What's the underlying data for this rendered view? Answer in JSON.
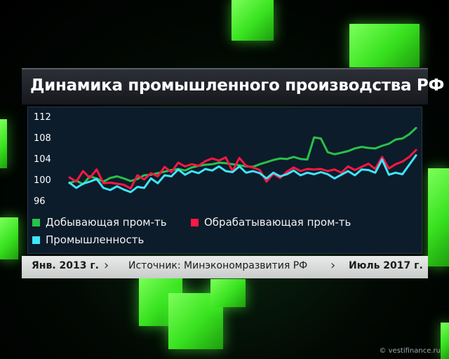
{
  "title": "Динамика промышленного производства РФ",
  "footer": {
    "start": "Янв. 2013 г.",
    "source": "Источник: Минэкономразвития РФ",
    "end": "Июль 2017 г."
  },
  "watermark": "© vestifinance.ru",
  "colors": {
    "mining": "#27c24a",
    "manufacturing": "#ff1744",
    "industry": "#3ee6ff"
  },
  "chart_data": {
    "type": "line",
    "title": "Динамика промышленного производства РФ",
    "xlabel": "",
    "ylabel": "",
    "x_range": [
      "Янв. 2013 г.",
      "Июль 2017 г."
    ],
    "ylim": [
      96,
      112
    ],
    "yticks": [
      96,
      100,
      104,
      108,
      112
    ],
    "grid": false,
    "legend_position": "bottom",
    "series": [
      {
        "name": "Добывающая пром-ть",
        "color": "#27c24a",
        "values": [
          99.3,
          99.8,
          99.1,
          100.6,
          100.2,
          99.6,
          100.3,
          100.6,
          100.2,
          99.7,
          100.1,
          100.8,
          100.9,
          101.2,
          101.5,
          101.8,
          102.0,
          101.7,
          102.3,
          102.6,
          102.8,
          102.9,
          103.2,
          103.1,
          102.9,
          102.7,
          102.5,
          102.4,
          102.9,
          103.3,
          103.7,
          104.0,
          103.9,
          104.3,
          103.9,
          103.8,
          108.0,
          107.8,
          105.2,
          104.8,
          105.1,
          105.4,
          105.9,
          106.2,
          106.0,
          105.9,
          106.4,
          106.8,
          107.6,
          107.8,
          108.6,
          109.8
        ]
      },
      {
        "name": "Обрабатывающая пром-ть",
        "color": "#ff1744",
        "values": [
          100.4,
          99.6,
          101.6,
          100.3,
          101.9,
          99.3,
          99.4,
          99.2,
          99.0,
          98.3,
          100.8,
          100.0,
          101.2,
          100.6,
          102.4,
          101.4,
          103.2,
          102.5,
          102.9,
          102.6,
          103.5,
          104.0,
          103.6,
          104.2,
          101.6,
          104.1,
          102.6,
          102.3,
          101.8,
          99.6,
          101.1,
          100.3,
          101.5,
          102.3,
          101.6,
          102.0,
          101.9,
          102.0,
          101.6,
          101.9,
          101.3,
          102.5,
          101.8,
          102.4,
          103.0,
          102.0,
          104.3,
          102.1,
          102.9,
          103.4,
          104.3,
          105.6
        ]
      },
      {
        "name": "Промышленность",
        "color": "#3ee6ff",
        "values": [
          99.4,
          98.4,
          99.2,
          99.6,
          100.1,
          98.4,
          98.0,
          98.7,
          98.1,
          97.6,
          98.6,
          98.4,
          100.2,
          99.3,
          100.8,
          100.6,
          101.9,
          100.9,
          101.6,
          101.2,
          102.0,
          101.7,
          102.5,
          101.6,
          101.4,
          102.5,
          101.3,
          101.6,
          101.2,
          100.2,
          101.3,
          100.6,
          101.0,
          101.7,
          100.8,
          101.3,
          101.0,
          101.4,
          101.0,
          100.2,
          100.9,
          101.6,
          100.8,
          101.9,
          101.8,
          101.3,
          103.8,
          100.9,
          101.3,
          101.0,
          102.8,
          104.6
        ]
      }
    ]
  }
}
